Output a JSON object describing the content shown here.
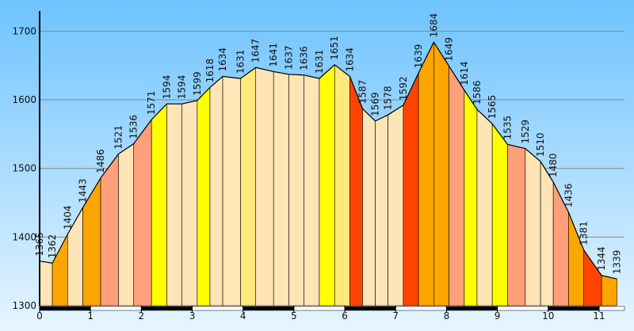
{
  "chart_data": {
    "type": "area",
    "title": "",
    "xlabel": "",
    "ylabel": "",
    "grid": true,
    "xlim": [
      0,
      11.5
    ],
    "ylim": [
      1300,
      1720
    ],
    "x_ticks": [
      0,
      1,
      2,
      3,
      4,
      5,
      6,
      7,
      8,
      9,
      10,
      11
    ],
    "y_ticks": [
      1300,
      1400,
      1500,
      1600,
      1700
    ],
    "series": [
      {
        "x": [
          0,
          0.25,
          0.55,
          0.85,
          1.2,
          1.55,
          1.85,
          2.2,
          2.5,
          2.8,
          3.1,
          3.35,
          3.6,
          3.95,
          4.25,
          4.6,
          4.9,
          5.2,
          5.5,
          5.8,
          6.1,
          6.35,
          6.6,
          6.85,
          7.15,
          7.45,
          7.75,
          8.05,
          8.35,
          8.6,
          8.9,
          9.2,
          9.55,
          9.85,
          10.1,
          10.4,
          10.7,
          11.05,
          11.35
        ],
        "y": [
          1365,
          1362,
          1404,
          1443,
          1486,
          1521,
          1536,
          1571,
          1594,
          1594,
          1599,
          1618,
          1634,
          1631,
          1647,
          1641,
          1637,
          1636,
          1631,
          1651,
          1634,
          1587,
          1569,
          1578,
          1592,
          1639,
          1684,
          1649,
          1614,
          1586,
          1565,
          1535,
          1529,
          1510,
          1480,
          1436,
          1381,
          1344,
          1339
        ]
      }
    ],
    "segment_colors": [
      "#ffe4b5",
      "#ffa500",
      "#ffe4b5",
      "#ffa500",
      "#ffa07a",
      "#ffe4b5",
      "#ffa07a",
      "#ffff00",
      "#ffe4b5",
      "#ffe4b5",
      "#ffff00",
      "#ffe4b5",
      "#ffe4b5",
      "#ffe87c",
      "#ffe4b5",
      "#ffe4b5",
      "#ffe4b5",
      "#ffe4b5",
      "#ffff00",
      "#ffe87c",
      "#ff4500",
      "#ffe4b5",
      "#ffe4b5",
      "#ffe4b5",
      "#ff4500",
      "#ffa500",
      "#ffa500",
      "#ffa07a",
      "#ffff00",
      "#ffe4b5",
      "#ffff00",
      "#ffa07a",
      "#ffe4b5",
      "#ffe4b5",
      "#ffa07a",
      "#ffa500",
      "#ff4500",
      "#ffa500"
    ],
    "colors": {
      "sky_top": "#6ec3ff",
      "sky_bottom": "#e6f5ff",
      "outline": "#000000",
      "grid": "#888888",
      "axis": "#000000"
    }
  }
}
